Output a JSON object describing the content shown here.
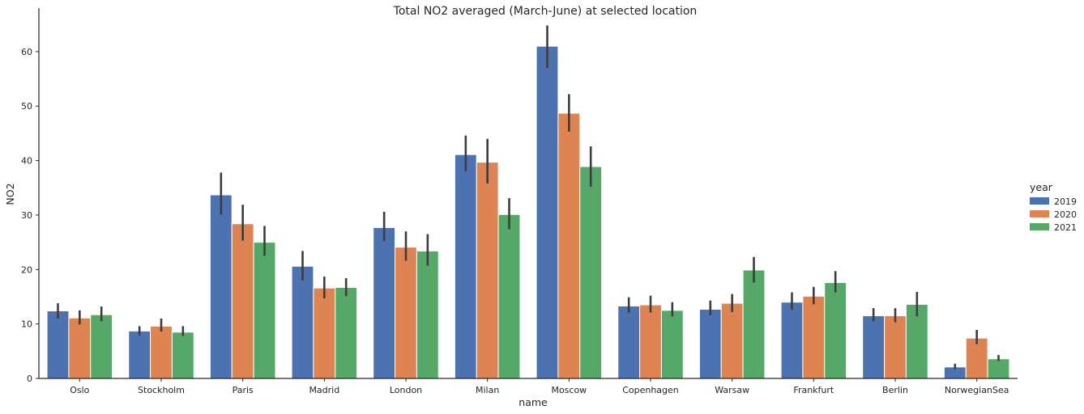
{
  "chart_data": {
    "type": "bar",
    "title": "Total NO2 averaged (March-June) at selected location",
    "xlabel": "name",
    "ylabel": "NO2",
    "ylim": [
      0,
      68
    ],
    "yticks": [
      0,
      10,
      20,
      30,
      40,
      50,
      60
    ],
    "grid": false,
    "legend": {
      "title": "year",
      "position": "right"
    },
    "categories": [
      "Oslo",
      "Stockholm",
      "Paris",
      "Madrid",
      "London",
      "Milan",
      "Moscow",
      "Copenhagen",
      "Warsaw",
      "Frankfurt",
      "Berlin",
      "NorwegianSea"
    ],
    "series": [
      {
        "name": "2019",
        "color": "#4c72b0",
        "values": [
          12.4,
          8.7,
          33.7,
          20.6,
          27.7,
          41.1,
          61.0,
          13.3,
          12.7,
          14.0,
          11.5,
          2.1
        ],
        "ci_low": [
          11.0,
          7.9,
          30.1,
          18.0,
          25.2,
          38.0,
          57.0,
          12.0,
          11.6,
          12.6,
          10.5,
          1.7
        ],
        "ci_high": [
          13.8,
          9.6,
          37.8,
          23.4,
          30.6,
          44.6,
          64.8,
          14.9,
          14.3,
          15.8,
          12.9,
          2.7
        ]
      },
      {
        "name": "2020",
        "color": "#dd8452",
        "values": [
          11.1,
          9.6,
          28.4,
          16.6,
          24.1,
          39.7,
          48.7,
          13.5,
          13.8,
          15.1,
          11.5,
          7.4
        ],
        "ci_low": [
          9.9,
          8.6,
          25.3,
          14.7,
          21.6,
          35.8,
          45.3,
          12.1,
          12.2,
          13.6,
          10.3,
          6.3
        ],
        "ci_high": [
          12.5,
          11.0,
          31.9,
          18.7,
          27.0,
          44.0,
          52.2,
          15.2,
          15.5,
          16.8,
          12.9,
          8.9
        ]
      },
      {
        "name": "2021",
        "color": "#55a868",
        "values": [
          11.7,
          8.5,
          25.0,
          16.7,
          23.4,
          30.1,
          38.9,
          12.5,
          19.9,
          17.6,
          13.6,
          3.6
        ],
        "ci_low": [
          10.5,
          7.8,
          22.5,
          15.1,
          20.7,
          27.4,
          35.2,
          11.4,
          17.6,
          15.8,
          11.4,
          3.2
        ],
        "ci_high": [
          13.2,
          9.6,
          28.0,
          18.4,
          26.5,
          33.1,
          42.6,
          14.0,
          22.3,
          19.7,
          15.9,
          4.3
        ]
      }
    ]
  }
}
